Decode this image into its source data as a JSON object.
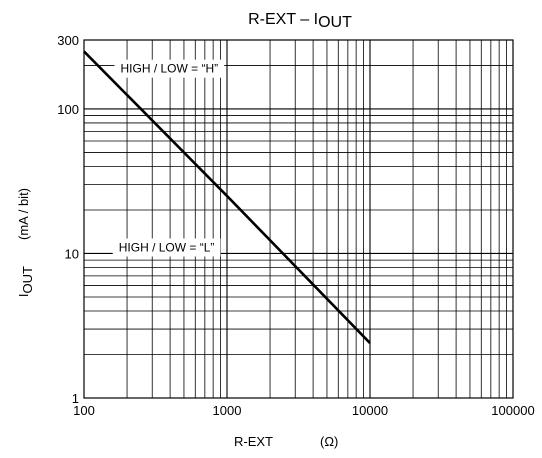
{
  "chart_data": {
    "type": "line",
    "title": "R-EXT  –  I",
    "title_sub": "OUT",
    "xlabel": "R-EXT",
    "xlabel_unit": "(Ω)",
    "ylabel": "I",
    "ylabel_sub": "OUT",
    "ylabel_unit": "(mA / bit)",
    "x_scale": "log",
    "y_scale": "log",
    "xlim": [
      100,
      100000
    ],
    "ylim": [
      1,
      300
    ],
    "x_ticks": [
      100,
      1000,
      10000,
      100000
    ],
    "x_tick_labels": [
      "100",
      "1000",
      "10000",
      "100000"
    ],
    "y_ticks": [
      1,
      10,
      100,
      300
    ],
    "y_tick_labels": [
      "1",
      "10",
      "100",
      "300"
    ],
    "grid": true,
    "series": [
      {
        "x": [
          100,
          1000,
          10000
        ],
        "y": [
          250,
          25,
          2.4
        ]
      }
    ],
    "annotations": [
      {
        "text": "HIGH / LOW = “H”",
        "x": 180,
        "y": 190
      },
      {
        "text": "HIGH / LOW = “L”",
        "x": 175,
        "y": 11
      }
    ],
    "line_color": "#000000",
    "grid_color": "#000000"
  }
}
